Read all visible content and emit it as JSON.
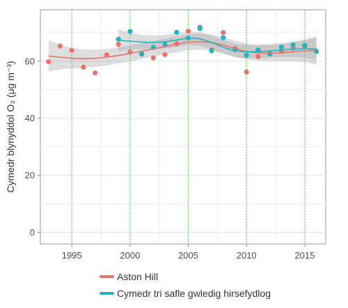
{
  "chart_data": {
    "type": "scatter",
    "title": "",
    "xlabel": "",
    "ylabel": "Cymedr blynyddol O₃ (μg m⁻³)",
    "xlim": [
      1992.3,
      2016.8
    ],
    "ylim": [
      -4,
      78
    ],
    "x_ticks": [
      1995,
      2000,
      2005,
      2010,
      2015
    ],
    "y_ticks": [
      0,
      20,
      40,
      60
    ],
    "grid": true,
    "vertical_reference_lines": [
      1995,
      2000,
      2005,
      2010,
      2015
    ],
    "legend_position": "bottom",
    "series": [
      {
        "name": "Aston Hill",
        "color": "#e8736c",
        "points": [
          [
            1993,
            59.8
          ],
          [
            1994,
            65.3
          ],
          [
            1995,
            63.8
          ],
          [
            1996,
            57.9
          ],
          [
            1997,
            55.9
          ],
          [
            1998,
            62.2
          ],
          [
            1999,
            65.9
          ],
          [
            2000,
            63.2
          ],
          [
            2001,
            62.4
          ],
          [
            2002,
            61.1
          ],
          [
            2003,
            62.3
          ],
          [
            2004,
            66.1
          ],
          [
            2005,
            70.5
          ],
          [
            2006,
            71.9
          ],
          [
            2007,
            63.9
          ],
          [
            2008,
            70.0
          ],
          [
            2009,
            64.4
          ],
          [
            2010,
            56.2
          ],
          [
            2011,
            61.6
          ],
          [
            2012,
            62.6
          ],
          [
            2013,
            63.4
          ],
          [
            2014,
            64.6
          ],
          [
            2015,
            65.1
          ],
          [
            2016,
            63.5
          ]
        ],
        "trend": [
          [
            1993,
            61.8
          ],
          [
            1994,
            61.4
          ],
          [
            1995,
            61.0
          ],
          [
            1996,
            60.9
          ],
          [
            1997,
            61.0
          ],
          [
            1998,
            61.4
          ],
          [
            1999,
            62.0
          ],
          [
            2000,
            62.7
          ],
          [
            2001,
            63.5
          ],
          [
            2002,
            64.3
          ],
          [
            2003,
            65.1
          ],
          [
            2004,
            65.9
          ],
          [
            2005,
            66.6
          ],
          [
            2006,
            66.8
          ],
          [
            2007,
            66.5
          ],
          [
            2008,
            65.6
          ],
          [
            2009,
            64.4
          ],
          [
            2010,
            63.4
          ],
          [
            2011,
            62.9
          ],
          [
            2012,
            62.8
          ],
          [
            2013,
            63.0
          ],
          [
            2014,
            63.3
          ],
          [
            2015,
            63.6
          ],
          [
            2016,
            63.8
          ]
        ],
        "band_halfwidth": [
          5.6,
          4.3,
          3.6,
          3.2,
          3.0,
          2.9,
          2.8,
          2.8,
          2.8,
          2.8,
          2.8,
          2.8,
          2.8,
          2.8,
          2.8,
          2.8,
          2.8,
          2.8,
          2.8,
          2.9,
          3.0,
          3.3,
          3.9,
          5.0
        ]
      },
      {
        "name": "Cymedr tri safle gwledig hirsefydlog",
        "color": "#1fb5c2",
        "points": [
          [
            1999,
            67.7
          ],
          [
            2000,
            70.4
          ],
          [
            2001,
            62.6
          ],
          [
            2002,
            64.8
          ],
          [
            2003,
            65.8
          ],
          [
            2004,
            70.1
          ],
          [
            2005,
            68.1
          ],
          [
            2006,
            71.4
          ],
          [
            2007,
            63.6
          ],
          [
            2008,
            68.2
          ],
          [
            2009,
            64.0
          ],
          [
            2010,
            62.1
          ],
          [
            2011,
            63.9
          ],
          [
            2012,
            62.5
          ],
          [
            2013,
            64.9
          ],
          [
            2014,
            65.7
          ],
          [
            2015,
            65.5
          ],
          [
            2016,
            63.4
          ]
        ],
        "trend": [
          [
            1999,
            67.3
          ],
          [
            2000,
            67.0
          ],
          [
            2001,
            66.7
          ],
          [
            2002,
            66.6
          ],
          [
            2003,
            66.8
          ],
          [
            2004,
            67.4
          ],
          [
            2005,
            68.0
          ],
          [
            2006,
            67.8
          ],
          [
            2007,
            66.5
          ],
          [
            2008,
            64.9
          ],
          [
            2009,
            63.7
          ],
          [
            2010,
            63.3
          ],
          [
            2011,
            63.3
          ],
          [
            2012,
            63.6
          ],
          [
            2013,
            63.9
          ],
          [
            2014,
            64.2
          ],
          [
            2015,
            64.3
          ],
          [
            2016,
            64.3
          ]
        ],
        "band_halfwidth": [
          3.9,
          2.9,
          2.5,
          2.4,
          2.4,
          2.4,
          2.4,
          2.4,
          2.4,
          2.4,
          2.4,
          2.4,
          2.4,
          2.4,
          2.5,
          2.7,
          3.1,
          3.9
        ]
      }
    ],
    "colors": {
      "panel_background": "#ffffff",
      "grid": "#e8e8e8",
      "axis": "#7f7f7f",
      "reference_line": "#5fd35f",
      "band": "#a9a9a9"
    }
  }
}
